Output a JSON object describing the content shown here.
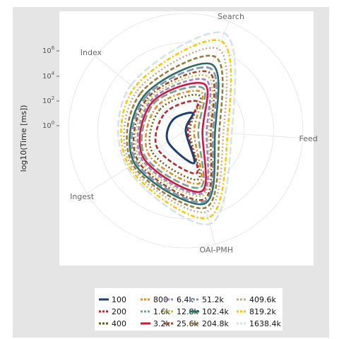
{
  "chart_data": {
    "type": "radar",
    "ylabel": "log10(Time [ms])",
    "y_ticks": [
      {
        "base": "10",
        "exp": "6"
      },
      {
        "base": "10",
        "exp": "4"
      },
      {
        "base": "10",
        "exp": "2"
      },
      {
        "base": "10",
        "exp": "0"
      }
    ],
    "categories": [
      "Index",
      "Search",
      "Feed",
      "OAI-PMH",
      "Ingest"
    ],
    "legend": {
      "placement": "bottom",
      "entries": [
        {
          "name": "100",
          "color": "#1f3f6e",
          "dash": "solid"
        },
        {
          "name": "200",
          "color": "#b2292e",
          "dash": "dashed"
        },
        {
          "name": "400",
          "color": "#6b5a1e",
          "dash": "dotted"
        },
        {
          "name": "800",
          "color": "#e08a2a",
          "dash": "dotdash"
        },
        {
          "name": "1.6k",
          "color": "#7d9e8c",
          "dash": "longdash"
        },
        {
          "name": "3.2k",
          "color": "#c8193c",
          "dash": "solid"
        },
        {
          "name": "6.4k",
          "color": "#a083c8",
          "dash": "dashed"
        },
        {
          "name": "12.8k",
          "color": "#c9c35a",
          "dash": "dotted"
        },
        {
          "name": "25.6k",
          "color": "#9b4a2a",
          "dash": "dotdash"
        },
        {
          "name": "51.2k",
          "color": "#7f95b0",
          "dash": "longdash"
        },
        {
          "name": "102.4k",
          "color": "#2e6b63",
          "dash": "solid"
        },
        {
          "name": "204.8k",
          "color": "#9a7e3a",
          "dash": "dashed"
        },
        {
          "name": "409.6k",
          "color": "#c9a89a",
          "dash": "dotted"
        },
        {
          "name": "819.2k",
          "color": "#f5c800",
          "dash": "dotdash"
        },
        {
          "name": "1638.4k",
          "color": "#d6e2ea",
          "dash": "longdash"
        }
      ]
    },
    "series_log10_values": [
      {
        "name": "100",
        "values": [
          0.8,
          0.9,
          0.0,
          1.6,
          1.0
        ]
      },
      {
        "name": "200",
        "values": [
          1.3,
          1.5,
          0.1,
          2.1,
          1.6
        ]
      },
      {
        "name": "400",
        "values": [
          1.6,
          1.8,
          0.2,
          2.4,
          1.9
        ]
      },
      {
        "name": "800",
        "values": [
          1.8,
          2.0,
          0.4,
          2.6,
          2.1
        ]
      },
      {
        "name": "1.6k",
        "values": [
          2.0,
          2.2,
          0.6,
          2.8,
          2.3
        ]
      },
      {
        "name": "3.2k",
        "values": [
          2.1,
          2.4,
          0.8,
          3.0,
          2.4
        ]
      },
      {
        "name": "6.4k",
        "values": [
          2.2,
          2.6,
          1.0,
          3.1,
          2.5
        ]
      },
      {
        "name": "12.8k",
        "values": [
          2.3,
          2.8,
          1.1,
          3.2,
          2.6
        ]
      },
      {
        "name": "25.6k",
        "values": [
          2.4,
          3.0,
          1.2,
          3.4,
          2.7
        ]
      },
      {
        "name": "51.2k",
        "values": [
          2.5,
          3.2,
          1.3,
          3.5,
          2.8
        ]
      },
      {
        "name": "102.4k",
        "values": [
          2.6,
          3.4,
          1.4,
          3.6,
          2.9
        ]
      },
      {
        "name": "204.8k",
        "values": [
          2.8,
          3.8,
          1.6,
          3.8,
          3.0
        ]
      },
      {
        "name": "409.6k",
        "values": [
          3.0,
          4.2,
          1.8,
          4.0,
          3.1
        ]
      },
      {
        "name": "819.2k",
        "values": [
          3.2,
          4.6,
          2.0,
          4.3,
          3.2
        ]
      },
      {
        "name": "1638.4k",
        "values": [
          3.4,
          5.0,
          2.2,
          4.6,
          3.3
        ]
      }
    ]
  }
}
